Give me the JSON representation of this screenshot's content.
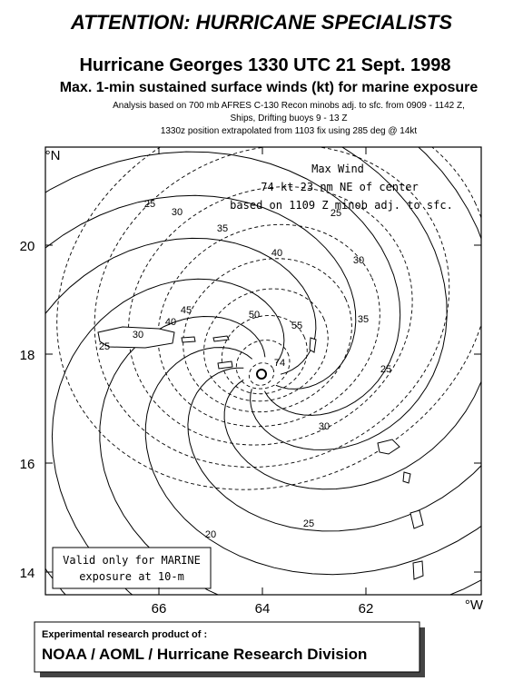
{
  "header": {
    "title": "ATTENTION: HURRICANE SPECIALISTS",
    "subtitle": "Hurricane Georges 1330 UTC 21 Sept. 1998",
    "description": "Max. 1-min sustained surface winds (kt) for marine exposure",
    "notes": [
      "Analysis based on 700 mb AFRES C-130 Recon minobs adj. to sfc. from  0909 - 1142 Z,",
      "Ships, Drifting buoys 9 -  13 Z",
      "1330z position extrapolated from  1103 fix using 285 deg @ 14kt"
    ]
  },
  "map": {
    "lat_unit": "°N",
    "lon_unit": "°W",
    "lat_ticks": [
      20,
      18,
      16,
      14
    ],
    "lon_ticks": [
      66,
      64,
      62
    ],
    "max_wind": [
      "Max Wind",
      "74 kt  23 nm  NE of center",
      "based on 1109 Z minob adj. to sfc."
    ],
    "validity": [
      "Valid only for MARINE",
      "exposure at 10-m"
    ],
    "contour_labels": [
      25,
      30,
      35,
      40,
      30,
      25,
      35,
      45,
      40,
      50,
      55,
      74,
      25,
      30,
      30,
      20,
      25,
      25
    ]
  },
  "footer": {
    "credit": "Experimental research product of :",
    "organization": "NOAA / AOML / Hurricane Research Division"
  }
}
